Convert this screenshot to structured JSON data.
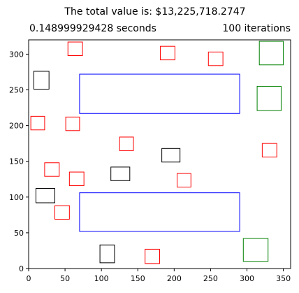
{
  "chart_data": {
    "type": "scatter",
    "title": "The total value is: $13,225,718.2747",
    "subtitle_left": "0.148999929428 seconds",
    "subtitle_right": "100 iterations",
    "xlabel": "",
    "ylabel": "",
    "xlim": [
      0,
      360
    ],
    "ylim": [
      0,
      320
    ],
    "x_ticks": [
      0,
      50,
      100,
      150,
      200,
      250,
      300,
      350
    ],
    "y_ticks": [
      0,
      50,
      100,
      150,
      200,
      250,
      300
    ],
    "grid": false,
    "colors": {
      "red": "#ff0000",
      "black": "#000000",
      "blue": "#0000ff",
      "green": "#008000"
    },
    "rectangles": [
      {
        "color": "red",
        "x": 54,
        "y": 298,
        "w": 20,
        "h": 19
      },
      {
        "color": "red",
        "x": 181,
        "y": 292,
        "w": 20,
        "h": 19
      },
      {
        "color": "red",
        "x": 247,
        "y": 284,
        "w": 20,
        "h": 19
      },
      {
        "color": "green",
        "x": 317,
        "y": 285,
        "w": 33,
        "h": 33
      },
      {
        "color": "black",
        "x": 7,
        "y": 251,
        "w": 21,
        "h": 25
      },
      {
        "color": "blue",
        "x": 70,
        "y": 217,
        "w": 220,
        "h": 55
      },
      {
        "color": "green",
        "x": 314,
        "y": 221,
        "w": 33,
        "h": 34
      },
      {
        "color": "red",
        "x": 3,
        "y": 194,
        "w": 19,
        "h": 19
      },
      {
        "color": "red",
        "x": 51,
        "y": 193,
        "w": 19,
        "h": 19
      },
      {
        "color": "red",
        "x": 125,
        "y": 165,
        "w": 19,
        "h": 19
      },
      {
        "color": "black",
        "x": 183,
        "y": 149,
        "w": 25,
        "h": 19
      },
      {
        "color": "red",
        "x": 321,
        "y": 156,
        "w": 20,
        "h": 19
      },
      {
        "color": "red",
        "x": 22,
        "y": 129,
        "w": 20,
        "h": 19
      },
      {
        "color": "black",
        "x": 113,
        "y": 123,
        "w": 26,
        "h": 19
      },
      {
        "color": "red",
        "x": 56,
        "y": 116,
        "w": 20,
        "h": 19
      },
      {
        "color": "red",
        "x": 204,
        "y": 114,
        "w": 19,
        "h": 19
      },
      {
        "color": "black",
        "x": 10,
        "y": 92,
        "w": 26,
        "h": 20
      },
      {
        "color": "blue",
        "x": 70,
        "y": 52,
        "w": 220,
        "h": 54
      },
      {
        "color": "red",
        "x": 36,
        "y": 69,
        "w": 20,
        "h": 19
      },
      {
        "color": "black",
        "x": 98,
        "y": 8,
        "w": 20,
        "h": 25
      },
      {
        "color": "green",
        "x": 295,
        "y": 10,
        "w": 34,
        "h": 32
      },
      {
        "color": "red",
        "x": 160,
        "y": 7,
        "w": 20,
        "h": 20
      }
    ]
  }
}
